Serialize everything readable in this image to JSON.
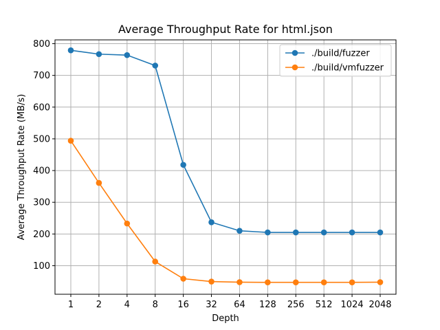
{
  "chart_data": {
    "type": "line",
    "title": "Average Throughput Rate for html.json",
    "xlabel": "Depth",
    "ylabel": "Average Throughput Rate (MB/s)",
    "categories": [
      "1",
      "2",
      "4",
      "8",
      "16",
      "32",
      "64",
      "128",
      "256",
      "512",
      "1024",
      "2048"
    ],
    "ylim": [
      10,
      812
    ],
    "yticks": [
      "100",
      "200",
      "300",
      "400",
      "500",
      "600",
      "700",
      "800"
    ],
    "grid": true,
    "legend_position": "top-right",
    "series": [
      {
        "name": "./build/fuzzer",
        "color": "#1f77b4",
        "values": [
          779,
          767,
          764,
          731,
          418,
          237,
          210,
          205,
          205,
          205,
          205,
          205
        ]
      },
      {
        "name": "./build/vmfuzzer",
        "color": "#ff7f0e",
        "values": [
          494,
          361,
          233,
          113,
          59,
          50,
          48,
          47.5,
          47.5,
          47.5,
          47.5,
          48
        ]
      }
    ]
  }
}
